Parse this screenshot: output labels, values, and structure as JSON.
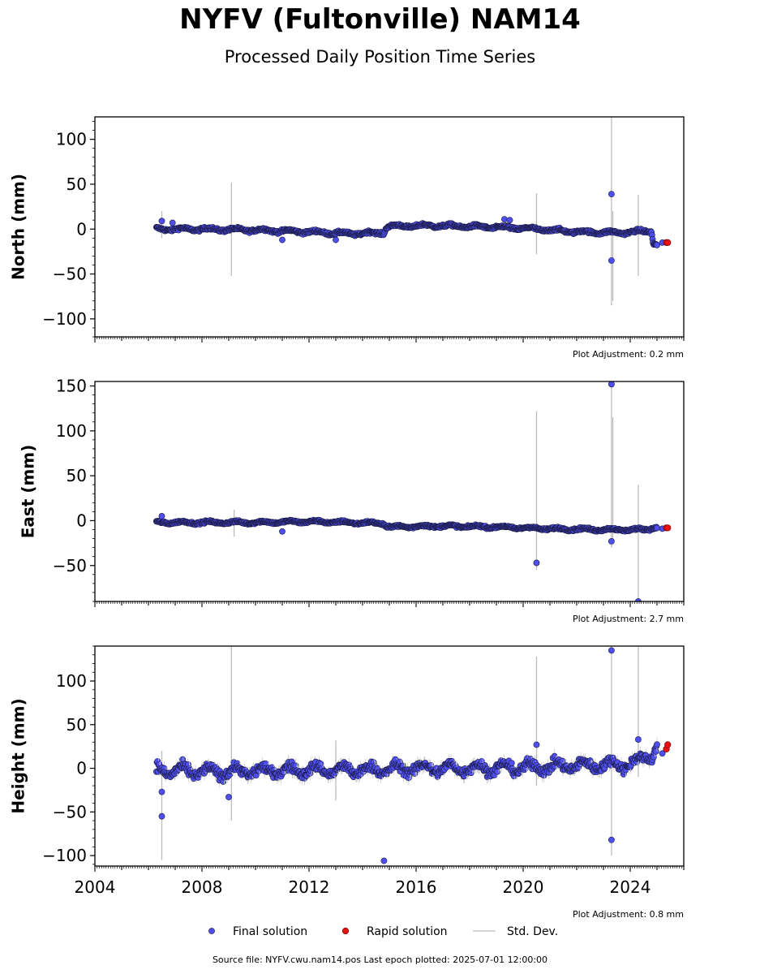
{
  "title": "NYFV (Fultonville) NAM14",
  "subtitle": "Processed Daily Position Time Series",
  "footer": "Source file: NYFV.cwu.nam14.pos  Last epoch plotted: 2025-07-01 12:00:00",
  "legend": {
    "final": "Final solution",
    "rapid": "Rapid solution",
    "std": "Std. Dev."
  },
  "colors": {
    "final": "#4f4ff0",
    "final_edge": "#1a1a40",
    "rapid": "#e81010",
    "std": "#c8c8c8"
  },
  "chart_data": [
    {
      "type": "scatter",
      "ylabel": "North (mm)",
      "xlim": [
        2004,
        2026
      ],
      "ylim": [
        -120,
        125
      ],
      "yticks": [
        100,
        50,
        0,
        -50,
        -100
      ],
      "xticks": [
        2004,
        2008,
        2012,
        2016,
        2020,
        2024
      ],
      "show_xticklabels": false,
      "adjustment": "Plot Adjustment: 0.2 mm",
      "final_trend": [
        [
          2006.3,
          0
        ],
        [
          2008.0,
          0
        ],
        [
          2010.0,
          -1
        ],
        [
          2012.0,
          -3
        ],
        [
          2013.5,
          -5
        ],
        [
          2014.8,
          -4
        ],
        [
          2014.9,
          3
        ],
        [
          2016.5,
          4
        ],
        [
          2018.0,
          3
        ],
        [
          2020.0,
          1
        ],
        [
          2022.0,
          -3
        ],
        [
          2023.5,
          -4
        ],
        [
          2024.8,
          -2
        ],
        [
          2024.85,
          -15
        ],
        [
          2025.0,
          -17
        ]
      ],
      "final_noise": 2.5,
      "outliers": [
        [
          2006.5,
          9
        ],
        [
          2006.9,
          7
        ],
        [
          2011.0,
          -12
        ],
        [
          2013.0,
          -12
        ],
        [
          2019.3,
          11
        ],
        [
          2019.5,
          10
        ],
        [
          2023.3,
          39
        ],
        [
          2023.3,
          -35
        ],
        [
          2025.2,
          -15
        ]
      ],
      "rapid_points": [
        [
          2025.35,
          -15
        ],
        [
          2025.4,
          -15
        ]
      ],
      "stddev_bars": [
        [
          2006.5,
          -10,
          20
        ],
        [
          2009.1,
          -52,
          52
        ],
        [
          2020.5,
          -28,
          40
        ],
        [
          2023.3,
          -85,
          125
        ],
        [
          2023.35,
          -80,
          20
        ],
        [
          2024.3,
          -52,
          38
        ]
      ]
    },
    {
      "type": "scatter",
      "ylabel": "East (mm)",
      "xlim": [
        2004,
        2026
      ],
      "ylim": [
        -90,
        155
      ],
      "yticks": [
        150,
        100,
        50,
        0,
        -50
      ],
      "xticks": [
        2004,
        2008,
        2012,
        2016,
        2020,
        2024
      ],
      "show_xticklabels": false,
      "adjustment": "Plot Adjustment: 2.7 mm",
      "final_trend": [
        [
          2006.3,
          -2
        ],
        [
          2010.0,
          -2
        ],
        [
          2012.0,
          -1
        ],
        [
          2014.8,
          -3
        ],
        [
          2014.9,
          -7
        ],
        [
          2017.0,
          -6
        ],
        [
          2019.0,
          -7
        ],
        [
          2021.0,
          -9
        ],
        [
          2023.0,
          -10
        ],
        [
          2024.5,
          -10
        ],
        [
          2025.0,
          -7
        ]
      ],
      "final_noise": 2,
      "outliers": [
        [
          2006.5,
          5
        ],
        [
          2011.0,
          -12
        ],
        [
          2020.5,
          -47
        ],
        [
          2023.3,
          152
        ],
        [
          2023.3,
          -23
        ],
        [
          2024.3,
          -90
        ],
        [
          2025.2,
          -9
        ]
      ],
      "rapid_points": [
        [
          2025.35,
          -8
        ],
        [
          2025.4,
          -8
        ]
      ],
      "stddev_bars": [
        [
          2009.2,
          -18,
          12
        ],
        [
          2020.5,
          -55,
          122
        ],
        [
          2023.3,
          -30,
          155
        ],
        [
          2023.35,
          -25,
          115
        ],
        [
          2024.3,
          -90,
          40
        ]
      ]
    },
    {
      "type": "scatter",
      "ylabel": "Height (mm)",
      "xlim": [
        2004,
        2026
      ],
      "ylim": [
        -112,
        140
      ],
      "yticks": [
        100,
        50,
        0,
        -50,
        -100
      ],
      "xticks": [
        2004,
        2008,
        2012,
        2016,
        2020,
        2024
      ],
      "show_xticklabels": true,
      "adjustment": "Plot Adjustment: 0.8 mm",
      "final_trend": [
        [
          2006.3,
          -2
        ],
        [
          2008.0,
          -4
        ],
        [
          2010.0,
          -3
        ],
        [
          2012.0,
          -2
        ],
        [
          2014.0,
          -2
        ],
        [
          2016.0,
          0
        ],
        [
          2018.0,
          0
        ],
        [
          2020.0,
          1
        ],
        [
          2022.0,
          3
        ],
        [
          2024.0,
          5
        ],
        [
          2024.8,
          15
        ],
        [
          2025.0,
          28
        ]
      ],
      "final_noise": 9,
      "outliers": [
        [
          2006.5,
          -55
        ],
        [
          2006.5,
          -27
        ],
        [
          2009.0,
          -33
        ],
        [
          2014.8,
          -106
        ],
        [
          2020.5,
          27
        ],
        [
          2023.3,
          135
        ],
        [
          2023.3,
          -82
        ],
        [
          2024.3,
          33
        ],
        [
          2025.2,
          17
        ]
      ],
      "rapid_points": [
        [
          2025.35,
          22
        ],
        [
          2025.4,
          27
        ]
      ],
      "stddev_bars": [
        [
          2006.5,
          -105,
          20
        ],
        [
          2009.1,
          -60,
          140
        ],
        [
          2013.0,
          -37,
          32
        ],
        [
          2020.5,
          -20,
          128
        ],
        [
          2023.3,
          -100,
          140
        ],
        [
          2024.3,
          -10,
          140
        ]
      ]
    }
  ]
}
